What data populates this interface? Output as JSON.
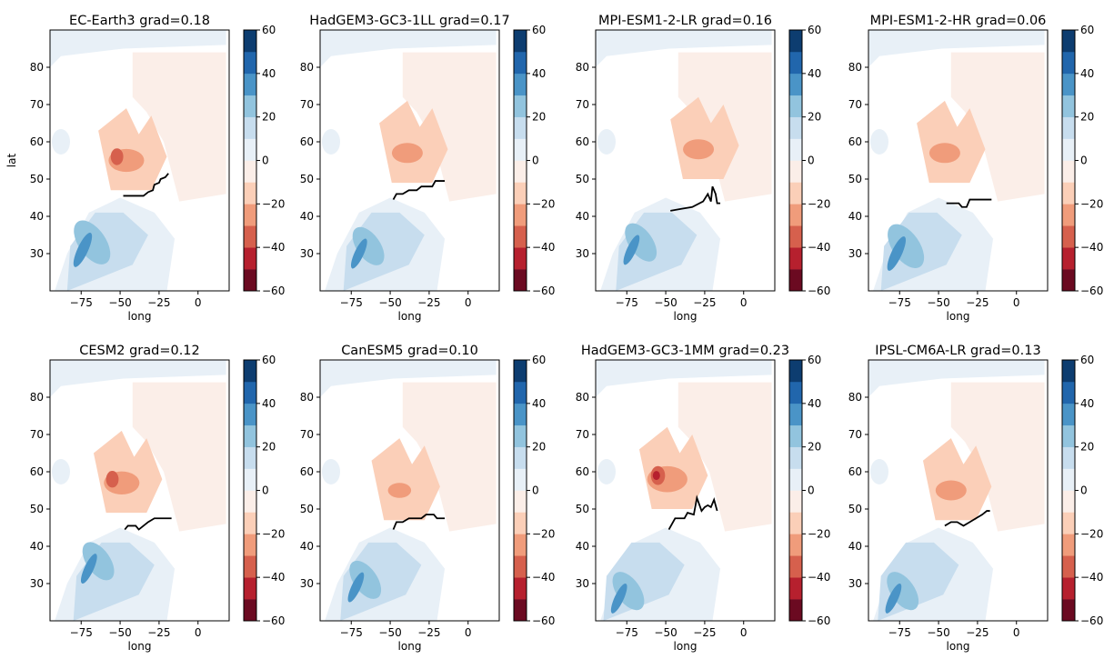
{
  "chart_data": {
    "type": "heatmap",
    "layout": "2x4 grid of filled-contour map panels",
    "shared": {
      "xlabel": "long",
      "ylabel": "lat",
      "xlim": [
        -95,
        20
      ],
      "ylim": [
        20,
        90
      ],
      "xticks": [
        -75,
        -50,
        -25,
        0
      ],
      "yticks": [
        30,
        40,
        50,
        60,
        70,
        80
      ],
      "colorbar": {
        "levels": [
          -60,
          -50,
          -40,
          -30,
          -20,
          -10,
          0,
          10,
          20,
          30,
          40,
          50,
          60
        ],
        "tick_labels": [
          "60",
          "40",
          "20",
          "0",
          "−20",
          "−40",
          "−60"
        ],
        "colors_low_to_high": [
          "#6b0a21",
          "#b6202e",
          "#d6604d",
          "#f09c7b",
          "#fbcfb8",
          "#fbeee8",
          "#e8f0f7",
          "#c7ddee",
          "#92c4de",
          "#4a94c7",
          "#2166ac",
          "#0d3d70"
        ]
      }
    },
    "panels": [
      {
        "model": "EC-Earth3",
        "grad": "0.18",
        "title": "EC-Earth3 grad=0.18",
        "show_ylabel": true,
        "front_line": [
          [
            -48,
            45.5
          ],
          [
            -35,
            45.5
          ],
          [
            -32,
            46.5
          ],
          [
            -29,
            47
          ],
          [
            -28,
            48.5
          ],
          [
            -25,
            49
          ],
          [
            -24,
            50
          ],
          [
            -21,
            50.5
          ],
          [
            -19,
            51.5
          ]
        ],
        "neg_peak": {
          "center": [
            -52,
            55
          ],
          "strength": "strong"
        },
        "pos_peak": {
          "center": [
            -72,
            33
          ],
          "strength": "strong"
        }
      },
      {
        "model": "HadGEM3-GC3-1LL",
        "grad": "0.17",
        "title": "HadGEM3-GC3-1LL grad=0.17",
        "show_ylabel": false,
        "front_line": [
          [
            -48,
            44.5
          ],
          [
            -46,
            46
          ],
          [
            -42,
            46
          ],
          [
            -38,
            47
          ],
          [
            -33,
            47
          ],
          [
            -30,
            48
          ],
          [
            -23,
            48
          ],
          [
            -21,
            49.5
          ],
          [
            -15,
            49.5
          ]
        ],
        "neg_peak": {
          "center": [
            -45,
            57
          ],
          "strength": "moderate"
        },
        "pos_peak": {
          "center": [
            -68,
            32
          ],
          "strength": "moderate"
        }
      },
      {
        "model": "MPI-ESM1-2-LR",
        "grad": "0.16",
        "title": "MPI-ESM1-2-LR grad=0.16",
        "show_ylabel": false,
        "front_line": [
          [
            -47,
            41.5
          ],
          [
            -40,
            42
          ],
          [
            -33,
            42.5
          ],
          [
            -26,
            44
          ],
          [
            -23,
            46
          ],
          [
            -21,
            44
          ],
          [
            -20,
            48
          ],
          [
            -18,
            46
          ],
          [
            -17,
            43.5
          ],
          [
            -15,
            43.5
          ]
        ],
        "neg_peak": {
          "center": [
            -35,
            58
          ],
          "strength": "moderate"
        },
        "pos_peak": {
          "center": [
            -70,
            33
          ],
          "strength": "moderate"
        }
      },
      {
        "model": "MPI-ESM1-2-HR",
        "grad": "0.06",
        "title": "MPI-ESM1-2-HR grad=0.06",
        "show_ylabel": false,
        "front_line": [
          [
            -45,
            43.5
          ],
          [
            -37,
            43.5
          ],
          [
            -35,
            42.5
          ],
          [
            -32,
            42.5
          ],
          [
            -30,
            44.5
          ],
          [
            -16,
            44.5
          ]
        ],
        "neg_peak": {
          "center": [
            -52,
            57
          ],
          "strength": "moderate"
        },
        "pos_peak": {
          "center": [
            -75,
            32
          ],
          "strength": "strong"
        }
      },
      {
        "model": "CESM2",
        "grad": "0.12",
        "title": "CESM2 grad=0.12",
        "show_ylabel": false,
        "front_line": [
          [
            -47,
            44.5
          ],
          [
            -45,
            45.5
          ],
          [
            -40,
            45.5
          ],
          [
            -38,
            44.5
          ],
          [
            -35,
            45.5
          ],
          [
            -32,
            46.5
          ],
          [
            -28,
            47.5
          ],
          [
            -17,
            47.5
          ]
        ],
        "neg_peak": {
          "center": [
            -55,
            57
          ],
          "strength": "strong"
        },
        "pos_peak": {
          "center": [
            -68,
            36
          ],
          "strength": "moderate"
        }
      },
      {
        "model": "CanESM5",
        "grad": "0.10",
        "title": "CanESM5 grad=0.10",
        "show_ylabel": false,
        "front_line": [
          [
            -48,
            44.5
          ],
          [
            -46,
            46.5
          ],
          [
            -42,
            46.5
          ],
          [
            -38,
            47.5
          ],
          [
            -30,
            47.5
          ],
          [
            -27,
            48.5
          ],
          [
            -22,
            48.5
          ],
          [
            -20,
            47.5
          ],
          [
            -15,
            47.5
          ]
        ],
        "neg_peak": {
          "center": [
            -50,
            55
          ],
          "strength": "weak"
        },
        "pos_peak": {
          "center": [
            -70,
            31
          ],
          "strength": "moderate"
        }
      },
      {
        "model": "HadGEM3-GC3-1MM",
        "grad": "0.23",
        "title": "HadGEM3-GC3-1MM grad=0.23",
        "show_ylabel": false,
        "front_line": [
          [
            -48,
            44.5
          ],
          [
            -44,
            47.5
          ],
          [
            -38,
            47.5
          ],
          [
            -36,
            49
          ],
          [
            -32,
            48.5
          ],
          [
            -30,
            53
          ],
          [
            -27,
            49.5
          ],
          [
            -25,
            50.5
          ],
          [
            -23,
            51
          ],
          [
            -21,
            50.5
          ],
          [
            -19,
            52.5
          ],
          [
            -17,
            49.5
          ]
        ],
        "neg_peak": {
          "center": [
            -55,
            58
          ],
          "strength": "very strong"
        },
        "pos_peak": {
          "center": [
            -78,
            28
          ],
          "strength": "moderate"
        }
      },
      {
        "model": "IPSL-CM6A-LR",
        "grad": "0.13",
        "title": "IPSL-CM6A-LR grad=0.13",
        "show_ylabel": false,
        "front_line": [
          [
            -46,
            45.5
          ],
          [
            -42,
            46.5
          ],
          [
            -38,
            46.5
          ],
          [
            -34,
            45.5
          ],
          [
            -30,
            46.5
          ],
          [
            -26,
            47.5
          ],
          [
            -22,
            48.5
          ],
          [
            -19,
            49.5
          ],
          [
            -17,
            49.5
          ]
        ],
        "neg_peak": {
          "center": [
            -48,
            55
          ],
          "strength": "moderate"
        },
        "pos_peak": {
          "center": [
            -77,
            28
          ],
          "strength": "moderate"
        }
      }
    ]
  }
}
